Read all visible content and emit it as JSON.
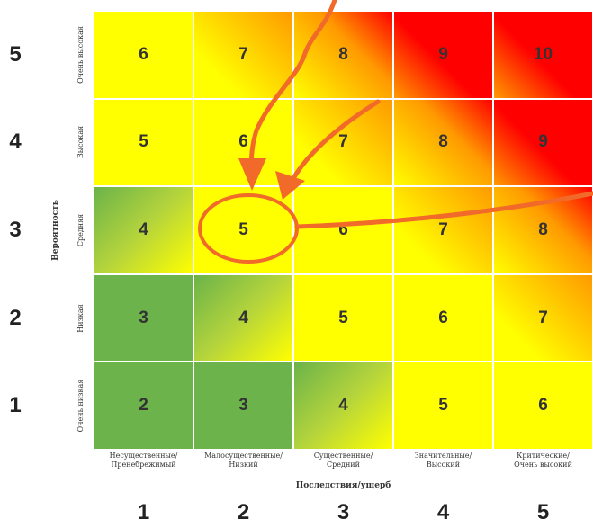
{
  "colors": {
    "green": "#6bb34a",
    "lightgreen": "#b5d43c",
    "yellow": "#ffff00",
    "orange": "#ff9a00",
    "red": "#ff0000",
    "annotation": "#f26a2a"
  },
  "rows": [
    {
      "number": "5",
      "label": "Очень высокая",
      "values": [
        "6",
        "7",
        "8",
        "9",
        "10"
      ]
    },
    {
      "number": "4",
      "label": "Высокая",
      "values": [
        "5",
        "6",
        "7",
        "8",
        "9"
      ]
    },
    {
      "number": "3",
      "label": "Средняя",
      "values": [
        "4",
        "5",
        "6",
        "7",
        "8"
      ]
    },
    {
      "number": "2",
      "label": "Низкая",
      "values": [
        "3",
        "4",
        "5",
        "6",
        "7"
      ]
    },
    {
      "number": "1",
      "label": "Очень низкая",
      "values": [
        "2",
        "3",
        "4",
        "5",
        "6"
      ]
    }
  ],
  "columns": [
    {
      "number": "1",
      "label_line1": "Несущественные/",
      "label_line2": "Пренебрежимый"
    },
    {
      "number": "2",
      "label_line1": "Малосущественные/",
      "label_line2": "Низкий"
    },
    {
      "number": "3",
      "label_line1": "Существенные/",
      "label_line2": "Средний"
    },
    {
      "number": "4",
      "label_line1": "Значительные/",
      "label_line2": "Высокий"
    },
    {
      "number": "5",
      "label_line1": "Критические/",
      "label_line2": "Очень высокий"
    }
  ],
  "y_axis_title": "Вероятность",
  "x_axis_title": "Последствия/ущерб",
  "highlight": {
    "row": "3",
    "column": "2",
    "value": "5"
  }
}
